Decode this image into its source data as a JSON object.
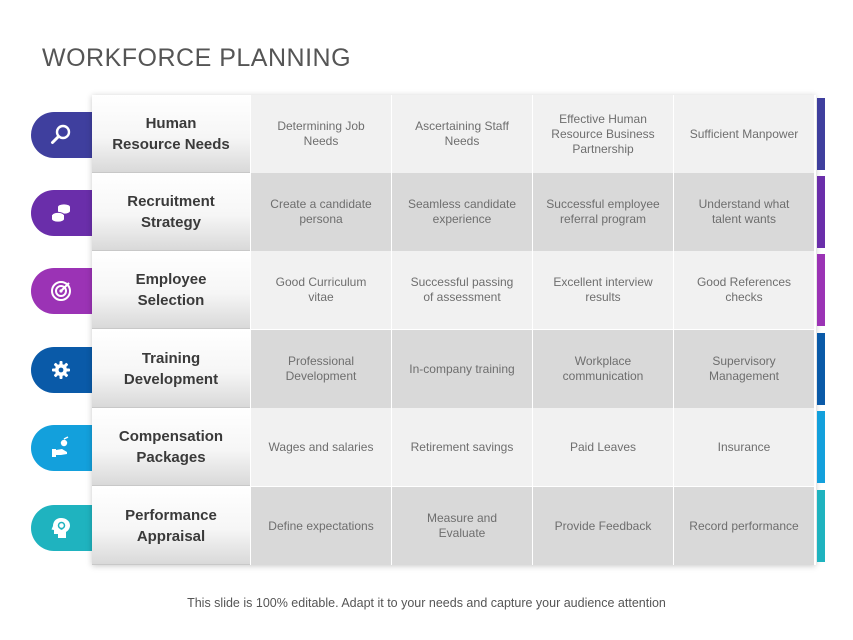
{
  "title": "WORKFORCE PLANNING",
  "footer": "This slide is 100% editable. Adapt it to your needs and capture your audience attention",
  "rows": [
    {
      "label": "Human\nResource Needs",
      "color": "#3f3f9e",
      "icon": "search-icon",
      "cells": [
        "Determining Job Needs",
        "Ascertaining Staff Needs",
        "Effective Human Resource Business Partnership",
        "Sufficient Manpower"
      ]
    },
    {
      "label": "Recruitment\nStrategy",
      "color": "#6a2eaa",
      "icon": "coins-icon",
      "cells": [
        "Create a candidate persona",
        "Seamless candidate experience",
        "Successful employee referral program",
        "Understand what talent wants"
      ]
    },
    {
      "label": "Employee\nSelection",
      "color": "#9b33b5",
      "icon": "target-icon",
      "cells": [
        "Good Curriculum vitae",
        "Successful passing of assessment",
        "Excellent interview results",
        "Good References checks"
      ]
    },
    {
      "label": "Training\nDevelopment",
      "color": "#0a5aa8",
      "icon": "gear-icon",
      "cells": [
        "Professional Development",
        "In-company training",
        "Workplace communication",
        "Supervisory Management"
      ]
    },
    {
      "label": "Compensation\nPackages",
      "color": "#13a0dc",
      "icon": "hand-money-icon",
      "cells": [
        "Wages and salaries",
        "Retirement savings",
        "Paid Leaves",
        "Insurance"
      ]
    },
    {
      "label": "Performance\nAppraisal",
      "color": "#1fb3bf",
      "icon": "head-idea-icon",
      "cells": [
        "Define expectations",
        "Measure and Evaluate",
        "Provide Feedback",
        "Record performance"
      ]
    }
  ]
}
